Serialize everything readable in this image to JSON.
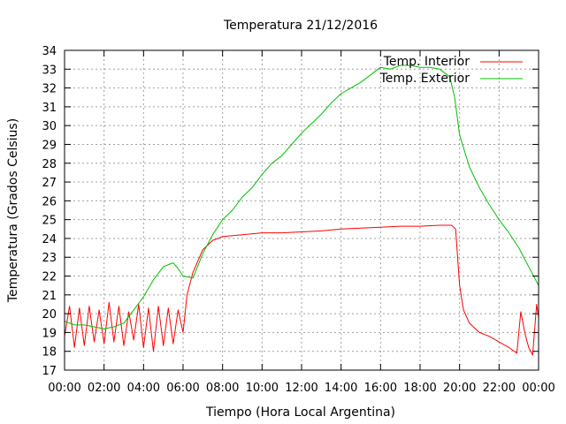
{
  "chart_data": {
    "type": "line",
    "title": "Temperatura 21/12/2016",
    "xlabel": "Tiempo (Hora Local Argentina)",
    "ylabel": "Temperatura (Grados Celsius)",
    "x_unit": "hours",
    "xlim": [
      0,
      24
    ],
    "ylim": [
      17,
      34
    ],
    "grid": true,
    "legend_position": "top-right",
    "x_ticks": [
      {
        "value": 0,
        "label": "00:00"
      },
      {
        "value": 2,
        "label": "02:00"
      },
      {
        "value": 4,
        "label": "04:00"
      },
      {
        "value": 6,
        "label": "06:00"
      },
      {
        "value": 8,
        "label": "08:00"
      },
      {
        "value": 10,
        "label": "10:00"
      },
      {
        "value": 12,
        "label": "12:00"
      },
      {
        "value": 14,
        "label": "14:00"
      },
      {
        "value": 16,
        "label": "16:00"
      },
      {
        "value": 18,
        "label": "18:00"
      },
      {
        "value": 20,
        "label": "20:00"
      },
      {
        "value": 22,
        "label": "22:00"
      },
      {
        "value": 24,
        "label": "00:00"
      }
    ],
    "y_ticks": [
      17,
      18,
      19,
      20,
      21,
      22,
      23,
      24,
      25,
      26,
      27,
      28,
      29,
      30,
      31,
      32,
      33,
      34
    ],
    "series": [
      {
        "name": "Temp. Interior",
        "color": "#ff0000",
        "points": [
          [
            0.0,
            18.8
          ],
          [
            0.25,
            20.4
          ],
          [
            0.5,
            18.2
          ],
          [
            0.75,
            20.3
          ],
          [
            1.0,
            18.3
          ],
          [
            1.25,
            20.4
          ],
          [
            1.5,
            18.5
          ],
          [
            1.75,
            20.2
          ],
          [
            2.0,
            18.4
          ],
          [
            2.25,
            20.6
          ],
          [
            2.5,
            18.5
          ],
          [
            2.75,
            20.4
          ],
          [
            3.0,
            18.3
          ],
          [
            3.25,
            20.1
          ],
          [
            3.5,
            18.6
          ],
          [
            3.75,
            20.5
          ],
          [
            4.0,
            18.2
          ],
          [
            4.25,
            20.3
          ],
          [
            4.5,
            18.0
          ],
          [
            4.75,
            20.4
          ],
          [
            5.0,
            18.3
          ],
          [
            5.25,
            20.3
          ],
          [
            5.5,
            18.4
          ],
          [
            5.75,
            20.2
          ],
          [
            6.0,
            19.0
          ],
          [
            6.2,
            21.0
          ],
          [
            6.5,
            22.2
          ],
          [
            7.0,
            23.4
          ],
          [
            7.5,
            23.9
          ],
          [
            8.0,
            24.1
          ],
          [
            9.0,
            24.2
          ],
          [
            10.0,
            24.3
          ],
          [
            11.0,
            24.3
          ],
          [
            12.0,
            24.35
          ],
          [
            13.0,
            24.4
          ],
          [
            14.0,
            24.5
          ],
          [
            15.0,
            24.55
          ],
          [
            16.0,
            24.6
          ],
          [
            17.0,
            24.65
          ],
          [
            18.0,
            24.65
          ],
          [
            19.0,
            24.7
          ],
          [
            19.6,
            24.7
          ],
          [
            19.8,
            24.5
          ],
          [
            20.0,
            21.5
          ],
          [
            20.2,
            20.2
          ],
          [
            20.5,
            19.5
          ],
          [
            21.0,
            19.0
          ],
          [
            21.5,
            18.8
          ],
          [
            22.0,
            18.5
          ],
          [
            22.5,
            18.2
          ],
          [
            22.9,
            17.9
          ],
          [
            23.1,
            20.1
          ],
          [
            23.3,
            19.0
          ],
          [
            23.5,
            18.2
          ],
          [
            23.7,
            17.8
          ],
          [
            23.9,
            20.5
          ],
          [
            24.0,
            19.8
          ]
        ]
      },
      {
        "name": "Temp. Exterior",
        "color": "#00c000",
        "points": [
          [
            0.0,
            19.6
          ],
          [
            0.5,
            19.4
          ],
          [
            1.0,
            19.4
          ],
          [
            1.5,
            19.3
          ],
          [
            2.0,
            19.2
          ],
          [
            2.5,
            19.3
          ],
          [
            3.0,
            19.5
          ],
          [
            3.5,
            20.2
          ],
          [
            4.0,
            20.9
          ],
          [
            4.5,
            21.8
          ],
          [
            5.0,
            22.5
          ],
          [
            5.5,
            22.7
          ],
          [
            5.75,
            22.4
          ],
          [
            6.0,
            22.0
          ],
          [
            6.5,
            21.9
          ],
          [
            7.0,
            23.2
          ],
          [
            7.5,
            24.2
          ],
          [
            8.0,
            25.0
          ],
          [
            8.5,
            25.5
          ],
          [
            9.0,
            26.2
          ],
          [
            9.5,
            26.7
          ],
          [
            10.0,
            27.4
          ],
          [
            10.5,
            28.0
          ],
          [
            11.0,
            28.4
          ],
          [
            11.5,
            29.0
          ],
          [
            12.0,
            29.6
          ],
          [
            12.5,
            30.1
          ],
          [
            13.0,
            30.6
          ],
          [
            13.5,
            31.2
          ],
          [
            14.0,
            31.7
          ],
          [
            14.5,
            32.0
          ],
          [
            15.0,
            32.3
          ],
          [
            15.5,
            32.7
          ],
          [
            16.0,
            33.1
          ],
          [
            16.5,
            33.0
          ],
          [
            17.0,
            33.2
          ],
          [
            17.5,
            33.2
          ],
          [
            18.0,
            33.1
          ],
          [
            18.5,
            33.1
          ],
          [
            19.0,
            33.0
          ],
          [
            19.5,
            32.6
          ],
          [
            19.75,
            31.5
          ],
          [
            20.0,
            29.5
          ],
          [
            20.5,
            27.8
          ],
          [
            21.0,
            26.7
          ],
          [
            21.5,
            25.8
          ],
          [
            22.0,
            25.0
          ],
          [
            22.5,
            24.3
          ],
          [
            23.0,
            23.5
          ],
          [
            23.5,
            22.5
          ],
          [
            24.0,
            21.5
          ]
        ]
      }
    ]
  }
}
